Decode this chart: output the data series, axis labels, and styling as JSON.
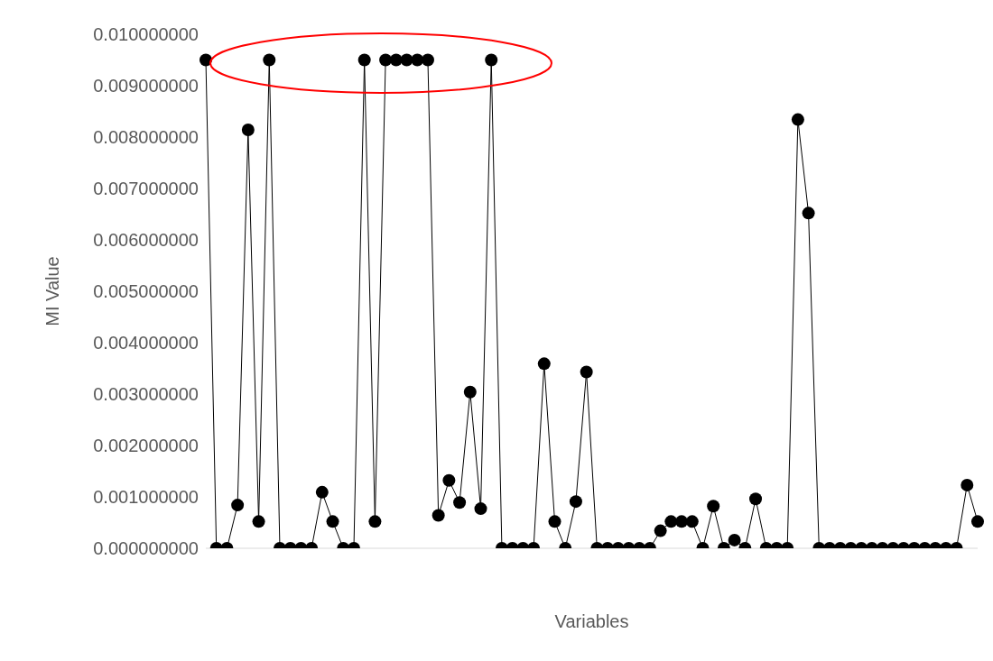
{
  "chart_data": {
    "type": "line",
    "xlabel": "Variables",
    "ylabel": "MI Value",
    "categories": [
      null,
      null,
      null,
      null,
      null,
      null,
      null,
      null,
      null,
      null,
      null,
      null,
      null,
      null,
      null,
      null,
      null,
      null,
      null,
      null,
      null,
      null,
      null,
      null,
      null,
      null,
      null,
      null,
      null,
      null,
      null,
      null,
      null,
      null,
      null,
      null,
      null,
      null,
      null,
      null,
      null,
      null,
      null,
      null,
      null,
      null,
      null,
      null,
      null,
      null,
      null,
      null,
      null,
      null,
      null,
      null,
      null,
      null,
      null,
      null,
      null,
      null,
      null,
      null,
      null,
      null,
      null,
      null,
      null,
      null,
      null,
      null,
      null,
      null
    ],
    "series": [
      {
        "color": "#000000",
        "values": [
          0.0095,
          0,
          0,
          0.00084,
          0.00814,
          0.00052,
          0.0095,
          0,
          0,
          0,
          0,
          0.00109,
          0.00052,
          0,
          0,
          0.0095,
          0.00052,
          0.0095,
          0.0095,
          0.0095,
          0.0095,
          0.0095,
          0.00064,
          0.00132,
          0.00089,
          0.00304,
          0.00077,
          0.0095,
          0,
          0,
          0,
          0,
          0.00359,
          0.00052,
          0,
          0.00091,
          0.00343,
          0,
          0,
          0,
          0,
          0,
          0,
          0.00034,
          0.00052,
          0.00052,
          0.00052,
          0,
          0.00082,
          0,
          0.00016,
          0,
          0.00096,
          0,
          0,
          0,
          0.00834,
          0.00652,
          0,
          0,
          0,
          0,
          0,
          0,
          0,
          0,
          0,
          0,
          0,
          0,
          0,
          0,
          0.00123,
          0.00052
        ]
      }
    ],
    "ylim": [
      0,
      0.01
    ],
    "yticks": [
      {
        "value": 0,
        "label": "0.000000000"
      },
      {
        "value": 0.001,
        "label": "0.001000000"
      },
      {
        "value": 0.002,
        "label": "0.002000000"
      },
      {
        "value": 0.003,
        "label": "0.003000000"
      },
      {
        "value": 0.004,
        "label": "0.004000000"
      },
      {
        "value": 0.005,
        "label": "0.005000000"
      },
      {
        "value": 0.006,
        "label": "0.006000000"
      },
      {
        "value": 0.007,
        "label": "0.007000000"
      },
      {
        "value": 0.008,
        "label": "0.008000000"
      },
      {
        "value": 0.009,
        "label": "0.009000000"
      },
      {
        "value": 0.01,
        "label": "0.010000000"
      }
    ],
    "grid": false,
    "legend": false,
    "marker": "circle",
    "line_style": "solid"
  }
}
